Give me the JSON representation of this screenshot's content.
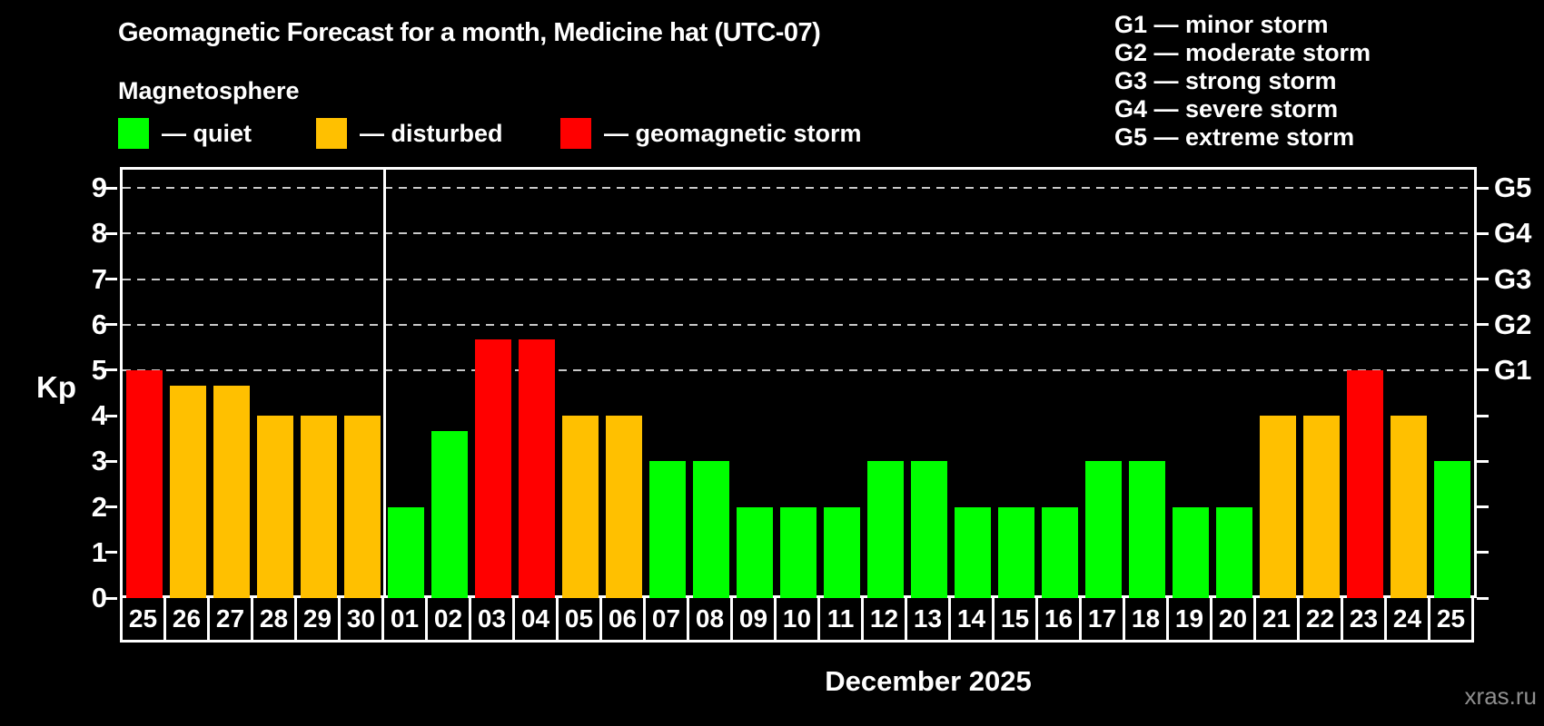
{
  "header": {
    "title": "Geomagnetic Forecast for a month, Medicine hat (UTC-07)",
    "subtitle": "Magnetosphere",
    "legend": [
      {
        "status": "quiet",
        "label": "— quiet"
      },
      {
        "status": "disturbed",
        "label": "— disturbed"
      },
      {
        "status": "storm",
        "label": "— geomagnetic storm"
      }
    ],
    "g_scale_legend": [
      "G1 — minor storm",
      "G2 — moderate storm",
      "G3 — strong storm",
      "G4 — severe storm",
      "G5 — extreme storm"
    ]
  },
  "chart_data": {
    "type": "bar",
    "title": "Geomagnetic Forecast for a month, Medicine hat (UTC-07)",
    "subtitle": "Magnetosphere",
    "ylabel": "Kp",
    "xlabel": "December 2025",
    "ylim": [
      0,
      9.4
    ],
    "yticks": [
      0,
      1,
      2,
      3,
      4,
      5,
      6,
      7,
      8,
      9
    ],
    "grid": "dashed horizontal lines at storm levels only",
    "legend_position": "top-left",
    "g_levels": [
      {
        "kp": 5,
        "label": "G1"
      },
      {
        "kp": 6,
        "label": "G2"
      },
      {
        "kp": 7,
        "label": "G3"
      },
      {
        "kp": 8,
        "label": "G4"
      },
      {
        "kp": 9,
        "label": "G5"
      }
    ],
    "categories": [
      "25",
      "26",
      "27",
      "28",
      "29",
      "30",
      "01",
      "02",
      "03",
      "04",
      "05",
      "06",
      "07",
      "08",
      "09",
      "10",
      "11",
      "12",
      "13",
      "14",
      "15",
      "16",
      "17",
      "18",
      "19",
      "20",
      "21",
      "22",
      "23",
      "24",
      "25"
    ],
    "values": [
      5,
      4.67,
      4.67,
      4,
      4,
      4,
      2,
      3.67,
      5.67,
      5.67,
      4,
      4,
      3,
      3,
      2,
      2,
      2,
      3,
      3,
      2,
      2,
      2,
      3,
      3,
      2,
      2,
      4,
      4,
      5,
      4,
      3
    ],
    "statuses": [
      "storm",
      "disturbed",
      "disturbed",
      "disturbed",
      "disturbed",
      "disturbed",
      "quiet",
      "quiet",
      "storm",
      "storm",
      "disturbed",
      "disturbed",
      "quiet",
      "quiet",
      "quiet",
      "quiet",
      "quiet",
      "quiet",
      "quiet",
      "quiet",
      "quiet",
      "quiet",
      "quiet",
      "quiet",
      "quiet",
      "quiet",
      "disturbed",
      "disturbed",
      "storm",
      "disturbed",
      "quiet"
    ],
    "month_separator_after_index": 5,
    "colors": {
      "quiet": "#00ff00",
      "disturbed": "#ffc000",
      "storm": "#ff0000",
      "axis": "#ffffff",
      "gridline": "#c9c9c9",
      "watermark_text": "#8f8f8f"
    }
  },
  "footer": {
    "month_label": "December 2025",
    "watermark": "xras.ru"
  }
}
